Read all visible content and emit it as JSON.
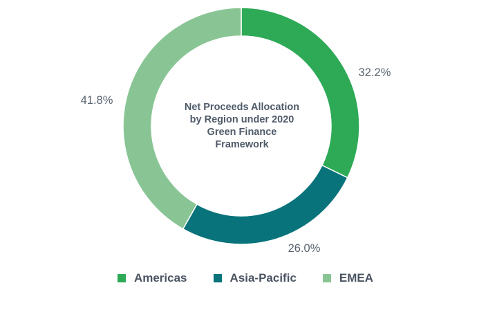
{
  "chart_data": {
    "type": "pie",
    "donut": true,
    "title": "Net Proceeds Allocation by Region under 2020 Green Finance Framework",
    "title_lines": [
      "Net Proceeds Allocation",
      "by Region under 2020",
      "Green Finance",
      "Framework"
    ],
    "categories": [
      "Americas",
      "Asia-Pacific",
      "EMEA"
    ],
    "values": [
      32.2,
      26.0,
      41.8
    ],
    "labels": [
      "32.2%",
      "26.0%",
      "41.8%"
    ],
    "colors": [
      "#2eaa57",
      "#08737a",
      "#89c594"
    ],
    "legend_position": "bottom"
  }
}
